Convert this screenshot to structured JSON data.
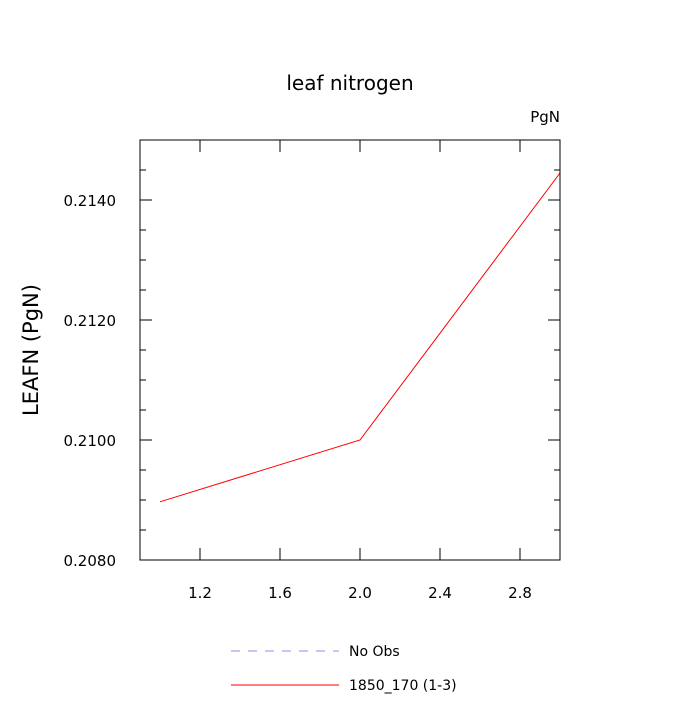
{
  "chart_data": {
    "type": "line",
    "title": "leaf nitrogen",
    "units_label": "PgN",
    "xlabel": "",
    "ylabel": "LEAFN  (PgN)",
    "xlim": [
      0.9,
      3.0
    ],
    "ylim": [
      0.208,
      0.215
    ],
    "x_ticks": [
      1.2,
      1.6,
      2.0,
      2.4,
      2.8
    ],
    "x_tick_labels": [
      "1.2",
      "1.6",
      "2.0",
      "2.4",
      "2.8"
    ],
    "x_minor_ticks": [],
    "y_ticks": [
      0.208,
      0.21,
      0.212,
      0.214
    ],
    "y_tick_labels": [
      "0.2080",
      "0.2100",
      "0.2120",
      "0.2140"
    ],
    "y_minor_ticks": [
      0.2085,
      0.209,
      0.2095,
      0.2105,
      0.211,
      0.2115,
      0.2125,
      0.213,
      0.2135,
      0.2145
    ],
    "grid": false,
    "legend_position": "bottom",
    "series": [
      {
        "name": "No Obs",
        "color": "#8f8fe6",
        "dash": "dashed",
        "x": [],
        "y": []
      },
      {
        "name": "1850_170 (1-3)",
        "color": "#ff0000",
        "dash": "solid",
        "x": [
          1.0,
          2.0,
          3.0
        ],
        "y": [
          0.20897,
          0.21,
          0.21445
        ]
      }
    ]
  }
}
